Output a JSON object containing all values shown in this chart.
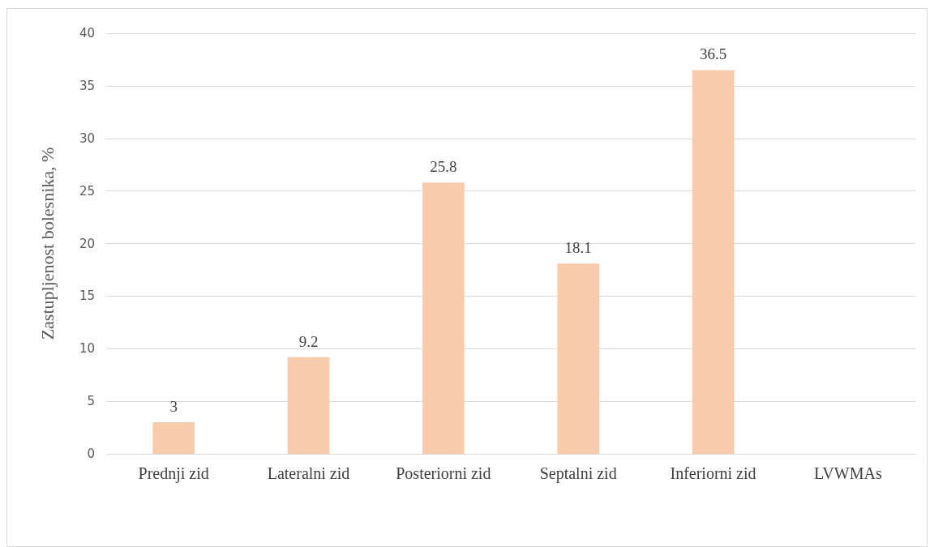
{
  "chart_data": {
    "type": "bar",
    "ylabel": "Zastupljenost bolesnika, %",
    "categories": [
      "Prednji zid",
      "Lateralni zid",
      "Posteriorni zid",
      "Septalni zid",
      "Inferiorni zid",
      "LVWMAs"
    ],
    "values": [
      3,
      9.2,
      25.8,
      18.1,
      36.5,
      null
    ],
    "color": "#f8cbad",
    "ylim": [
      0,
      40
    ],
    "yticks": [
      0,
      5,
      10,
      15,
      20,
      25,
      30,
      35,
      40
    ],
    "grid": "y",
    "data_labels": true
  }
}
